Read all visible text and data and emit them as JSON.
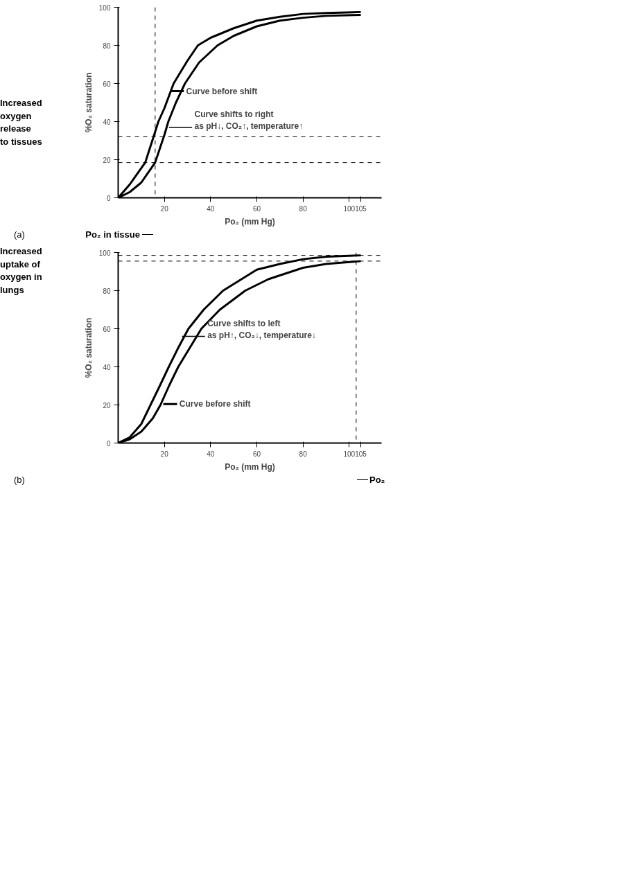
{
  "chart_data": [
    {
      "type": "line",
      "xlabel": "Po₂ (mm Hg)",
      "ylabel": "%O₂ saturation",
      "xlim": [
        0,
        114
      ],
      "ylim": [
        0,
        100
      ],
      "xticks": [
        20,
        40,
        60,
        80,
        100,
        105
      ],
      "yticks": [
        0,
        20,
        40,
        60,
        80,
        100
      ],
      "grid": false,
      "marker": "none",
      "line_style": "solid",
      "series": [
        {
          "color": "#000000",
          "x": [
            0,
            5,
            11.7,
            15.3,
            17.4,
            20,
            24,
            30,
            34.5,
            40,
            50,
            60,
            70,
            80,
            90,
            105
          ],
          "values": [
            0,
            7,
            18.5,
            32,
            40,
            47,
            60,
            72,
            80,
            84,
            89,
            93,
            95,
            96.5,
            97,
            97.5
          ]
        },
        {
          "color": "#000000",
          "x": [
            0,
            5,
            10,
            16,
            20,
            21.7,
            25,
            28.9,
            35,
            43,
            50,
            60,
            70,
            80,
            90,
            105
          ],
          "values": [
            0,
            3,
            8,
            18.5,
            33,
            40,
            50,
            60,
            71,
            80,
            85,
            90,
            93,
            94.5,
            95.5,
            96
          ]
        }
      ],
      "ref_lines": [
        {
          "axis": "y",
          "value": 32,
          "label": null,
          "line_style": "dashed"
        },
        {
          "axis": "y",
          "value": 18.5,
          "label": null,
          "line_style": "dashed"
        },
        {
          "axis": "x",
          "value": 16,
          "label": "Po₂ in tissue",
          "line_style": "dashed"
        }
      ],
      "annotations": [
        "(a)",
        "Increased\noxygen\nrelease\nto tissues",
        {
          "text": "Curve before shift",
          "x": 22.4,
          "y": 56
        },
        {
          "text": "Curve shifts to right\nas pH↓, CO₂↑, temperature↑",
          "x": 22,
          "y": 37
        }
      ]
    },
    {
      "type": "line",
      "xlabel": "Po₂ (mm Hg)",
      "ylabel": "%O₂ saturation",
      "xlim": [
        0,
        114
      ],
      "ylim": [
        0,
        100
      ],
      "xticks": [
        20,
        40,
        60,
        80,
        100,
        105
      ],
      "yticks": [
        0,
        20,
        40,
        60,
        80,
        100
      ],
      "grid": false,
      "marker": "none",
      "line_style": "solid",
      "series": [
        {
          "color": "#000000",
          "x": [
            0,
            5,
            10,
            14,
            18,
            21.9,
            26,
            30.4,
            37,
            45.4,
            60,
            70,
            80,
            90,
            105
          ],
          "values": [
            0,
            3,
            10,
            20,
            30,
            40,
            50,
            60,
            70,
            80,
            91,
            94,
            96.5,
            97.8,
            98.5
          ]
        },
        {
          "color": "#000000",
          "x": [
            0,
            5,
            10,
            15,
            18.3,
            22,
            26,
            31,
            36,
            44,
            55,
            65,
            80,
            90,
            105
          ],
          "values": [
            0,
            2,
            6,
            13,
            20,
            30,
            40,
            50,
            60,
            70,
            80,
            86,
            92,
            94,
            95.5
          ]
        }
      ],
      "ref_lines": [
        {
          "axis": "y",
          "value": 98.5,
          "label": null,
          "line_style": "dashed"
        },
        {
          "axis": "y",
          "value": 95.5,
          "label": null,
          "line_style": "dashed"
        },
        {
          "axis": "x",
          "value": 103,
          "label": "Po₂",
          "line_style": "dashed"
        }
      ],
      "annotations": [
        "(b)",
        "Increased\nuptake of\noxygen in\nlungs",
        {
          "text": "Curve shifts to left\nas pH↑, CO₂↓, temperature↓",
          "x": 27.6,
          "y": 56
        },
        {
          "text": "Curve before shift",
          "x": 19.5,
          "y": 20.5
        }
      ]
    }
  ]
}
